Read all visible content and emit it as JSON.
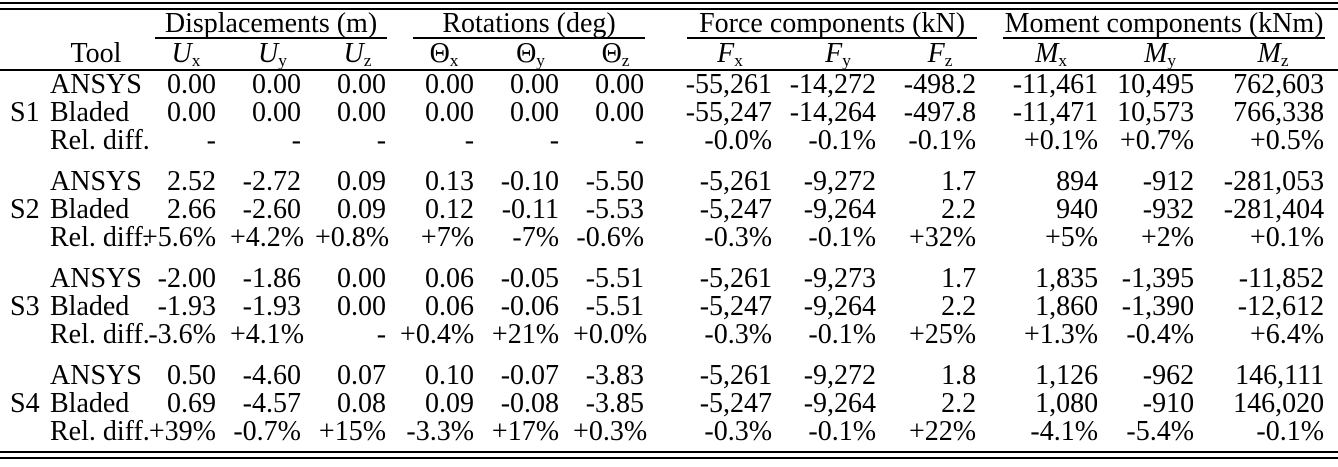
{
  "page": {
    "background": "#ffffff",
    "text_color": "#000000",
    "rule_color": "#000000"
  },
  "table": {
    "tool_header": "Tool",
    "groups": [
      {
        "label": "Displacements (m)",
        "cols": [
          {
            "base": "U",
            "sub": "x",
            "italic": true
          },
          {
            "base": "U",
            "sub": "y",
            "italic": true
          },
          {
            "base": "U",
            "sub": "z",
            "italic": true
          }
        ]
      },
      {
        "label": "Rotations (deg)",
        "cols": [
          {
            "base": "Θ",
            "sub": "x",
            "italic": false
          },
          {
            "base": "Θ",
            "sub": "y",
            "italic": false
          },
          {
            "base": "Θ",
            "sub": "z",
            "italic": false
          }
        ]
      },
      {
        "label": "Force components (kN)",
        "cols": [
          {
            "base": "F",
            "sub": "x",
            "italic": true
          },
          {
            "base": "F",
            "sub": "y",
            "italic": true
          },
          {
            "base": "F",
            "sub": "z",
            "italic": true
          }
        ]
      },
      {
        "label": "Moment components (kNm)",
        "cols": [
          {
            "base": "M",
            "sub": "x",
            "italic": true
          },
          {
            "base": "M",
            "sub": "y",
            "italic": true
          },
          {
            "base": "M",
            "sub": "z",
            "italic": true
          }
        ]
      }
    ],
    "sections": [
      {
        "id": "S1",
        "rows": [
          {
            "tool": "ANSYS",
            "values": [
              "0.00",
              "0.00",
              "0.00",
              "0.00",
              "0.00",
              "0.00",
              "-55,261",
              "-14,272",
              "-498.2",
              "-11,461",
              "10,495",
              "762,603"
            ]
          },
          {
            "tool": "Bladed",
            "values": [
              "0.00",
              "0.00",
              "0.00",
              "0.00",
              "0.00",
              "0.00",
              "-55,247",
              "-14,264",
              "-497.8",
              "-11,471",
              "10,573",
              "766,338"
            ]
          },
          {
            "tool": "Rel. diff.",
            "values": [
              "-",
              "-",
              "-",
              "-",
              "-",
              "-",
              "-0.0%",
              "-0.1%",
              "-0.1%",
              "+0.1%",
              "+0.7%",
              "+0.5%"
            ]
          }
        ]
      },
      {
        "id": "S2",
        "rows": [
          {
            "tool": "ANSYS",
            "values": [
              "2.52",
              "-2.72",
              "0.09",
              "0.13",
              "-0.10",
              "-5.50",
              "-5,261",
              "-9,272",
              "1.7",
              "894",
              "-912",
              "-281,053"
            ]
          },
          {
            "tool": "Bladed",
            "values": [
              "2.66",
              "-2.60",
              "0.09",
              "0.12",
              "-0.11",
              "-5.53",
              "-5,247",
              "-9,264",
              "2.2",
              "940",
              "-932",
              "-281,404"
            ]
          },
          {
            "tool": "Rel. diff.",
            "values": [
              "+5.6%",
              "+4.2%",
              "+0.8%",
              "+7%",
              "-7%",
              "-0.6%",
              "-0.3%",
              "-0.1%",
              "+32%",
              "+5%",
              "+2%",
              "+0.1%"
            ]
          }
        ]
      },
      {
        "id": "S3",
        "rows": [
          {
            "tool": "ANSYS",
            "values": [
              "-2.00",
              "-1.86",
              "0.00",
              "0.06",
              "-0.05",
              "-5.51",
              "-5,261",
              "-9,273",
              "1.7",
              "1,835",
              "-1,395",
              "-11,852"
            ]
          },
          {
            "tool": "Bladed",
            "values": [
              "-1.93",
              "-1.93",
              "0.00",
              "0.06",
              "-0.06",
              "-5.51",
              "-5,247",
              "-9,264",
              "2.2",
              "1,860",
              "-1,390",
              "-12,612"
            ]
          },
          {
            "tool": "Rel. diff.",
            "values": [
              "-3.6%",
              "+4.1%",
              "-",
              "+0.4%",
              "+21%",
              "+0.0%",
              "-0.3%",
              "-0.1%",
              "+25%",
              "+1.3%",
              "-0.4%",
              "+6.4%"
            ]
          }
        ]
      },
      {
        "id": "S4",
        "rows": [
          {
            "tool": "ANSYS",
            "values": [
              "0.50",
              "-4.60",
              "0.07",
              "0.10",
              "-0.07",
              "-3.83",
              "-5,261",
              "-9,272",
              "1.8",
              "1,126",
              "-962",
              "146,111"
            ]
          },
          {
            "tool": "Bladed",
            "values": [
              "0.69",
              "-4.57",
              "0.08",
              "0.09",
              "-0.08",
              "-3.85",
              "-5,247",
              "-9,264",
              "2.2",
              "1,080",
              "-910",
              "146,020"
            ]
          },
          {
            "tool": "Rel. diff.",
            "values": [
              "+39%",
              "-0.7%",
              "+15%",
              "-3.3%",
              "+17%",
              "+0.3%",
              "-0.3%",
              "-0.1%",
              "+22%",
              "-4.1%",
              "-5.4%",
              "-0.1%"
            ]
          }
        ]
      }
    ]
  }
}
